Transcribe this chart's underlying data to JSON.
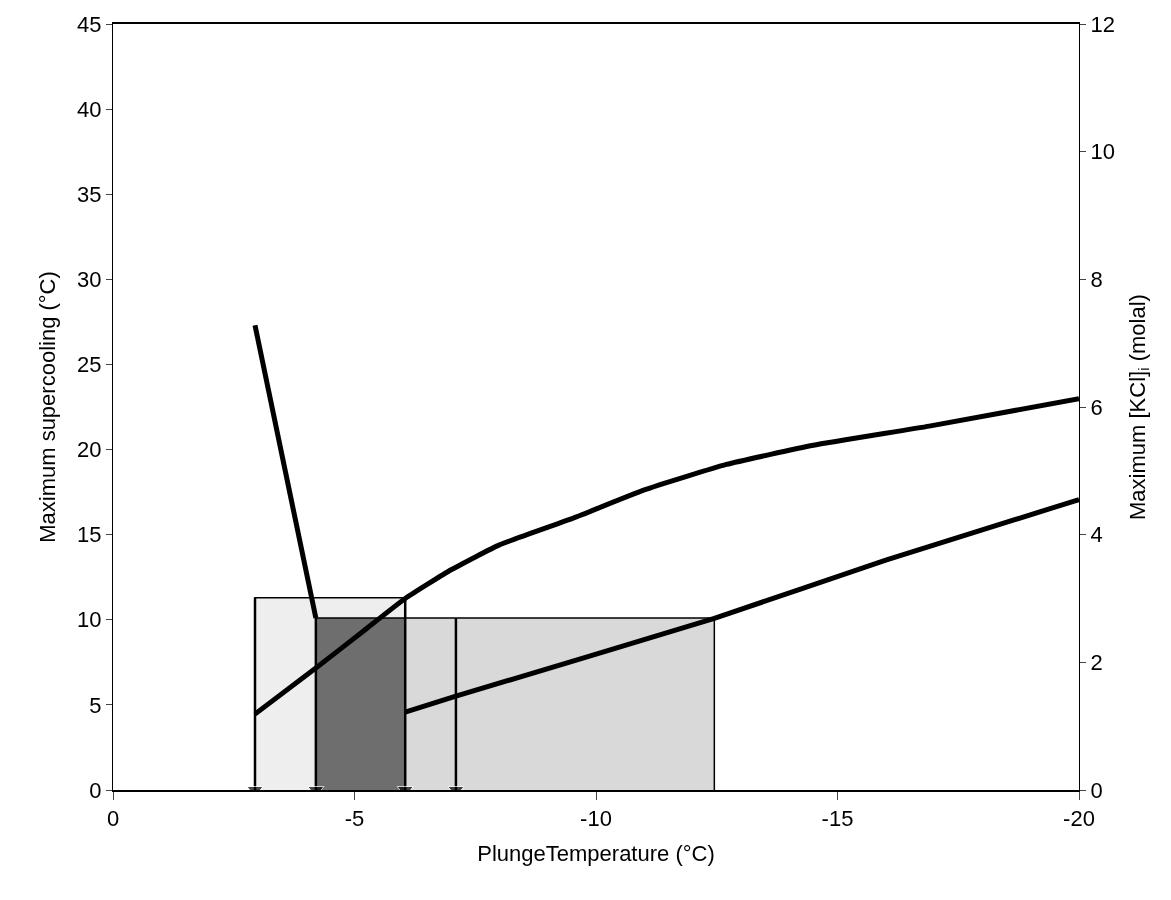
{
  "chart_data": {
    "type": "line",
    "xlabel": "PlungeTemperature (°C)",
    "ylabel": "Maximum supercooling (°C)",
    "y2label": "Maximum [KCl]$_{i}$ (molal)",
    "xlim": [
      0,
      -20
    ],
    "xticks": [
      0,
      -5,
      -10,
      -15,
      -20
    ],
    "ylim": [
      0,
      45
    ],
    "yticks": [
      0,
      5,
      10,
      15,
      20,
      25,
      30,
      35,
      40,
      45
    ],
    "y2lim": [
      0,
      12
    ],
    "y2ticks": [
      0,
      2,
      4,
      6,
      8,
      10,
      12
    ],
    "series": [
      {
        "type": "area",
        "color": "#eeeeee",
        "x": [
          -2.94,
          -6.05
        ],
        "values": [
          11.3,
          11.3
        ]
      },
      {
        "type": "area",
        "color": "#d9d9d9",
        "x": [
          -6.05,
          -12.45
        ],
        "values": [
          10.1,
          10.1
        ]
      },
      {
        "type": "area",
        "color": "#6e6e6e",
        "x": [
          -4.2,
          -6.05
        ],
        "values": [
          10.1,
          10.1
        ]
      },
      {
        "color": "#000000",
        "x": [
          -2.94,
          -4.2
        ],
        "values": [
          27.3,
          10.1
        ]
      },
      {
        "axis": "y2",
        "color": "#000000",
        "x": [
          -2.94,
          -4.2,
          -5.2,
          -6.05,
          -7,
          -8,
          -9.5,
          -11,
          -12.7,
          -14.5,
          -16.9,
          -20
        ],
        "values": [
          1.19,
          1.91,
          2.5,
          3.0,
          3.45,
          3.84,
          4.25,
          4.7,
          5.1,
          5.4,
          5.7,
          6.13
        ]
      },
      {
        "axis": "y2",
        "color": "#000000",
        "x": [
          -6.05,
          -7.1,
          -12.45,
          -16,
          -20
        ],
        "values": [
          1.22,
          1.47,
          2.69,
          3.6,
          4.55
        ]
      },
      {
        "marker": "triangle",
        "color": "#000000",
        "x": [
          -2.94,
          -2.94
        ],
        "values": [
          11.3,
          0
        ]
      },
      {
        "marker": "triangle",
        "color": "#000000",
        "x": [
          -4.2,
          -4.2
        ],
        "values": [
          10.1,
          0
        ]
      },
      {
        "marker": "triangle",
        "color": "#000000",
        "x": [
          -6.05,
          -6.05
        ],
        "values": [
          11.3,
          0
        ]
      },
      {
        "marker": "triangle",
        "color": "#000000",
        "x": [
          -7.1,
          -7.1
        ],
        "values": [
          10.1,
          0
        ]
      }
    ]
  }
}
